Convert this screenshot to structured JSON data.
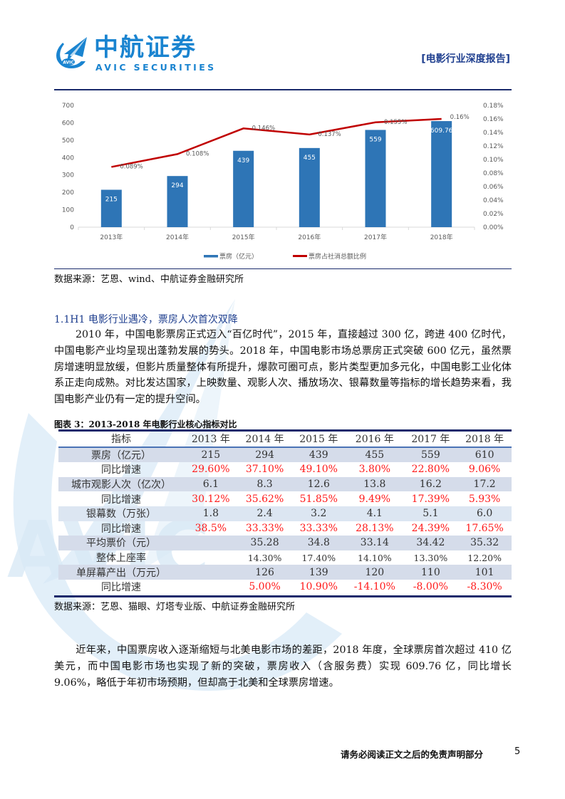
{
  "header": {
    "brand_cn": "中航证券",
    "brand_en": "AVIC SECURITIES",
    "logo_text": "AVIC",
    "report_tag": "[电影行业深度报告]"
  },
  "chart_data": {
    "type": "bar",
    "title": "",
    "categories": [
      "2013年",
      "2014年",
      "2015年",
      "2016年",
      "2017年",
      "2018年"
    ],
    "series": [
      {
        "name": "票房（亿元）",
        "type": "bar",
        "axis": "left",
        "values": [
          215,
          294,
          439,
          455,
          559,
          609.76
        ],
        "labels": [
          "215",
          "294",
          "439",
          "455",
          "559",
          "609.76"
        ],
        "color": "#2e75b6"
      },
      {
        "name": "票房占社消总额比例",
        "type": "line",
        "axis": "right",
        "values": [
          0.089,
          0.108,
          0.146,
          0.137,
          0.155,
          0.16
        ],
        "labels": [
          "0.089%",
          "0.108%",
          "0.146%",
          "0.137%",
          "0.155%",
          "0.16%"
        ],
        "color": "#c00000"
      }
    ],
    "left_axis": {
      "ylim": [
        0,
        700
      ],
      "ticks": [
        "0",
        "100",
        "200",
        "300",
        "400",
        "500",
        "600",
        "700"
      ]
    },
    "right_axis": {
      "ylim": [
        0,
        0.18
      ],
      "ticks": [
        "0.00%",
        "0.02%",
        "0.04%",
        "0.06%",
        "0.08%",
        "0.10%",
        "0.12%",
        "0.14%",
        "0.16%",
        "0.18%"
      ]
    },
    "xlabel": "",
    "ylabel": "",
    "grid": false,
    "legend_position": "bottom"
  },
  "chart_source": "数据来源：艺恩、wind、中航证券金融研究所",
  "section": {
    "title": "1.1H1 电影行业遇冷，票房人次首次双降",
    "paragraph": "2010 年，中国电影票房正式迈入“百亿时代”，2015 年，直接越过 300 亿，跨进 400 亿时代，中国电影产业均呈现出蓬勃发展的势头。2018 年，中国电影市场总票房正式突破 600 亿元，虽然票房增速明显放缓，但影片质量整体有所提升，爆款可圈可点，影片类型更加多元化，中国电影工业化体系正走向成熟。对比发达国家，上映数量、观影人次、播放场次、银幕数量等指标的增长趋势来看，我国电影产业仍有一定的提升空间。"
  },
  "table": {
    "caption": "图表 3：2013-2018 年电影行业核心指标对比",
    "headers": [
      "指标",
      "2013 年",
      "2014 年",
      "2015 年",
      "2016 年",
      "2017 年",
      "2018 年"
    ],
    "rows": [
      {
        "label": "票房（亿元）",
        "values": [
          "215",
          "294",
          "439",
          "455",
          "559",
          "610"
        ]
      },
      {
        "label": "同比增速",
        "values": [
          "29.60%",
          "37.10%",
          "49.10%",
          "3.80%",
          "22.80%",
          "9.06%"
        ]
      },
      {
        "label": "城市观影人次（亿次）",
        "values": [
          "6.1",
          "8.3",
          "12.6",
          "13.8",
          "16.2",
          "17.2"
        ]
      },
      {
        "label": "同比增速",
        "values": [
          "30.12%",
          "35.62%",
          "51.85%",
          "9.49%",
          "17.39%",
          "5.93%"
        ]
      },
      {
        "label": "银幕数（万张）",
        "values": [
          "1.8",
          "2.4",
          "3.2",
          "4.1",
          "5.1",
          "6.0"
        ]
      },
      {
        "label": "同比增速",
        "values": [
          "38.5%",
          "33.33%",
          "33.33%",
          "28.13%",
          "24.39%",
          "17.65%"
        ]
      },
      {
        "label": "平均票价（元）",
        "values": [
          "",
          "35.28",
          "34.8",
          "33.14",
          "34.42",
          "35.32"
        ]
      },
      {
        "label": "整体上座率",
        "values": [
          "",
          "14.30%",
          "17.40%",
          "14.10%",
          "13.30%",
          "12.20%"
        ]
      },
      {
        "label": "单屏幕产出（万元）",
        "values": [
          "",
          "126",
          "139",
          "120",
          "110",
          "101"
        ]
      },
      {
        "label": "同比增速",
        "values": [
          "",
          "5.00%",
          "10.90%",
          "-14.10%",
          "-8.00%",
          "-8.30%"
        ]
      }
    ],
    "source": "数据来源：艺恩、猫眼、灯塔专业版、中航证券金融研究所"
  },
  "closing_paragraph": "近年来，中国票房收入逐渐缩短与北美电影市场的差距，2018 年度，全球票房首次超过 410 亿美元，而中国电影市场也实现了新的突破，票房收入（含服务费）实现 609.76 亿，同比增长 9.06%，略低于年初市场预期，但却高于北美和全球票房增速。",
  "footer": {
    "disclaimer": "请务必阅读正文之后的免责声明部分",
    "page_number": "5"
  },
  "colors": {
    "brand_blue": "#1a84d0",
    "navy_rule": "#1a2a6c",
    "bar_blue": "#2e75b6",
    "line_red": "#c00000",
    "table_red": "#ff1a1a",
    "table_shade": "#d5dcea"
  }
}
